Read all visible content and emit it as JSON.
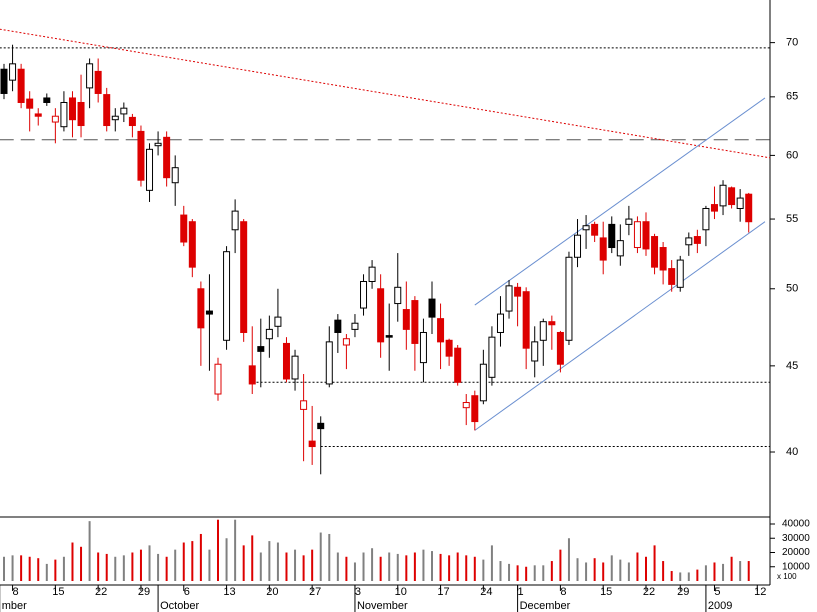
{
  "chart_data": {
    "type": "candlestick",
    "log_scale": true,
    "grid": false,
    "color": "#000000",
    "down_color": "#dd0000",
    "volume_color": "#808080",
    "categories": [
      null,
      "8",
      null,
      null,
      null,
      null,
      "15",
      null,
      null,
      null,
      null,
      "22",
      null,
      null,
      null,
      null,
      "29",
      null,
      null,
      null,
      null,
      "6",
      null,
      null,
      null,
      null,
      "13",
      null,
      null,
      null,
      null,
      "20",
      null,
      null,
      null,
      null,
      "27",
      null,
      null,
      null,
      null,
      "3",
      null,
      null,
      null,
      null,
      "10",
      null,
      null,
      null,
      null,
      "17",
      null,
      null,
      null,
      null,
      "24",
      null,
      null,
      null,
      "1",
      null,
      null,
      null,
      null,
      "8",
      null,
      null,
      null,
      null,
      "15",
      null,
      null,
      null,
      null,
      "22",
      null,
      null,
      null,
      "29",
      null,
      null,
      null,
      "5",
      null,
      null,
      null,
      null,
      "12"
    ],
    "months": [
      {
        "value": -0.5,
        "label": "mber"
      },
      {
        "value": 18,
        "label": "October"
      },
      {
        "value": 41,
        "label": "November"
      },
      {
        "value": 60,
        "label": "December"
      },
      {
        "value": 82,
        "label": "2009"
      }
    ],
    "open": [
      67.5,
      66.5,
      67.5,
      64.8,
      63.5,
      64.9,
      62.8,
      62.4,
      64.9,
      64.5,
      65.8,
      67.3,
      65.2,
      63,
      63.5,
      63.2,
      62,
      57.2,
      60.8,
      61.5,
      57.8,
      55.3,
      54.8,
      50,
      48.5,
      43.3,
      46.6,
      54.2,
      54.8,
      45,
      46.2,
      46.7,
      47.5,
      46.4,
      44.2,
      42.4,
      40.6,
      41.6,
      43.9,
      47.9,
      46.3,
      47.3,
      48.7,
      50.5,
      50,
      46.9,
      49,
      48.6,
      49.2,
      45.2,
      49.3,
      48,
      46.6,
      46.1,
      42.5,
      43.2,
      42.9,
      44.3,
      47.1,
      48.5,
      50.1,
      49.8,
      45.3,
      46.6,
      47.8,
      47.1,
      46.6,
      52.2,
      54.2,
      54.6,
      53.6,
      54.6,
      52.3,
      54.6,
      52.9,
      54.8,
      53.7,
      52.9,
      51.4,
      50.1,
      53.1,
      53.7,
      54.2,
      56.1,
      56,
      57.4,
      55.8,
      56.9,
      null
    ],
    "high": [
      68,
      69.8,
      68,
      65.5,
      64,
      65.3,
      64,
      65.5,
      65.5,
      67,
      68.5,
      68.5,
      65.8,
      64,
      64.5,
      63.5,
      62.5,
      61,
      62,
      62,
      60,
      56,
      55,
      50.5,
      51,
      45.5,
      53,
      56.5,
      55,
      47.5,
      48,
      48.2,
      50,
      46.8,
      46,
      44.5,
      42.6,
      42,
      47.5,
      48.3,
      47,
      48.3,
      51,
      52,
      51,
      49,
      52.5,
      50.5,
      49.5,
      48,
      50.5,
      49,
      46.7,
      46.3,
      43.3,
      43.5,
      46,
      47.5,
      49.5,
      50.6,
      50.4,
      50.1,
      47.5,
      48,
      48.2,
      47.2,
      52.6,
      55,
      55.3,
      54.8,
      54.8,
      55.2,
      54.6,
      56,
      55.2,
      55.5,
      53.9,
      53.3,
      52,
      52.3,
      54,
      54.2,
      56,
      57.5,
      58,
      57.5,
      57.3,
      57,
      null
    ],
    "low": [
      64.8,
      65.5,
      64,
      62,
      62.5,
      64.2,
      61,
      62,
      61.5,
      61.5,
      64,
      64.5,
      62,
      62,
      62.8,
      61.5,
      57.5,
      56.3,
      60,
      57.5,
      56,
      53,
      50.8,
      45,
      44.7,
      42.9,
      46,
      52.5,
      46.5,
      43.3,
      43.7,
      45.5,
      46.8,
      44,
      43.5,
      39.5,
      39.3,
      38.8,
      43.7,
      45.8,
      44.8,
      46.8,
      48.2,
      50,
      45.5,
      44.7,
      47.8,
      46,
      44.7,
      44,
      47,
      44.8,
      45,
      43.8,
      41.5,
      41.2,
      42.7,
      43.8,
      46.2,
      48,
      47.5,
      44.8,
      44.3,
      45,
      46,
      44.6,
      46.3,
      51.5,
      52.8,
      53.3,
      51,
      52.5,
      51.6,
      53.8,
      52.5,
      52.3,
      51,
      50.3,
      49.8,
      49.8,
      52.3,
      52.5,
      53,
      55,
      55.3,
      55.8,
      54.8,
      54,
      null
    ],
    "close": [
      65.3,
      68,
      64.5,
      64,
      63.3,
      64.5,
      63.3,
      64.5,
      63,
      62.5,
      68,
      65.3,
      62.5,
      63.3,
      64,
      62.5,
      58,
      60.5,
      61,
      58.2,
      59,
      53.3,
      51.5,
      47.4,
      48.3,
      45.1,
      52.6,
      55.6,
      47.1,
      43.9,
      45.9,
      47.3,
      48.1,
      44.2,
      45.6,
      42.9,
      40.3,
      41.3,
      46.5,
      47.1,
      46.7,
      47.7,
      50.5,
      51.5,
      46.5,
      46.8,
      50.1,
      47.3,
      46.4,
      47.1,
      48.1,
      46.5,
      45.6,
      44,
      42.8,
      41.7,
      45.1,
      46.8,
      48.3,
      50.2,
      49.5,
      46.1,
      46.5,
      47.8,
      47.6,
      45.1,
      52.2,
      53.8,
      54.5,
      53.8,
      52,
      52.9,
      53.4,
      55,
      54.8,
      52.8,
      51.5,
      51.3,
      50.3,
      52,
      53.6,
      53.2,
      55.8,
      55.6,
      57.6,
      56.1,
      56.6,
      54.8,
      null
    ],
    "volume": [
      17000,
      18000,
      18000,
      17000,
      16000,
      12000,
      15000,
      17000,
      27000,
      24000,
      42000,
      20000,
      19000,
      17000,
      18000,
      20000,
      22000,
      25000,
      19000,
      17000,
      22000,
      27000,
      28000,
      33000,
      22000,
      43000,
      30000,
      43000,
      25000,
      32000,
      20000,
      28000,
      27000,
      20000,
      22000,
      18000,
      22000,
      34000,
      33000,
      20000,
      17000,
      13000,
      20000,
      23000,
      17000,
      20000,
      19000,
      18000,
      20000,
      22000,
      21000,
      19000,
      18000,
      20000,
      18000,
      17000,
      15000,
      25000,
      14000,
      12000,
      11000,
      10000,
      11000,
      11000,
      14000,
      22000,
      30000,
      16000,
      13000,
      16000,
      13000,
      18000,
      15000,
      13000,
      20000,
      17000,
      25000,
      14000,
      7000,
      6000,
      6000,
      8000,
      11000,
      13000,
      12000,
      17000,
      14000,
      14000,
      null
    ],
    "ylim": [
      36.6,
      74.2
    ],
    "yticks": [
      40,
      45,
      50,
      55,
      60,
      65,
      70
    ],
    "volume_ylim": [
      0,
      43500
    ],
    "volume_yticks": [
      10000,
      20000,
      30000,
      40000
    ],
    "volume_unit_label": "x 100",
    "lines": [
      {
        "style": "dotted",
        "color": "#000000",
        "x": [
          -0.5,
          89.5
        ],
        "y": [
          69.5,
          69.5
        ]
      },
      {
        "style": "dashed",
        "color": "#555555",
        "x": [
          -0.5,
          89.5
        ],
        "y": [
          61.3,
          61.3
        ]
      },
      {
        "style": "dotted",
        "color": "#000000",
        "x": [
          29.5,
          89.5
        ],
        "y": [
          44,
          44
        ]
      },
      {
        "style": "dotted",
        "color": "#000000",
        "x": [
          37,
          89.5
        ],
        "y": [
          40.3,
          40.3
        ]
      },
      {
        "style": "dotted",
        "color": "#dd0000",
        "x": [
          -0.5,
          89.5
        ],
        "y": [
          71.3,
          59.8
        ]
      },
      {
        "style": "solid",
        "color": "#6a8fd0",
        "x": [
          55,
          88.9
        ],
        "y": [
          48.9,
          64.9
        ]
      },
      {
        "style": "solid",
        "color": "#6a8fd0",
        "x": [
          55,
          88.9
        ],
        "y": [
          41.2,
          54.8
        ]
      }
    ]
  }
}
